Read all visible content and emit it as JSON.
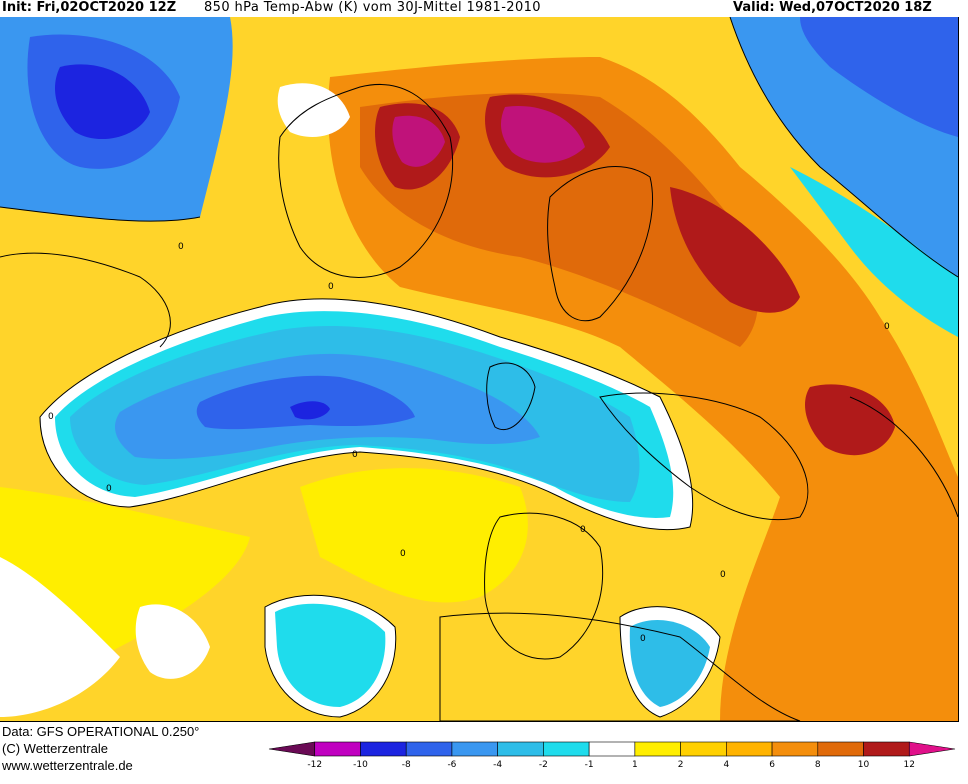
{
  "header": {
    "init": "Init: Fri,02OCT2020 12Z",
    "parameter": "850 hPa Temp-Abw (K) vom 30J-Mittel 1981-2010",
    "valid": "Valid: Wed,07OCT2020 18Z"
  },
  "footer": {
    "data_source": "Data: GFS OPERATIONAL 0.250°",
    "copyright": "(C) Wetterzentrale",
    "website": "www.wetterzentrale.de"
  },
  "map": {
    "contour_labels": [
      "0",
      "0",
      "0",
      "0",
      "0",
      "0",
      "0",
      "0",
      "0",
      "0"
    ]
  },
  "legend": {
    "colors": [
      "#6a0a55",
      "#c000c0",
      "#1c24e0",
      "#2f63eb",
      "#3a97f0",
      "#2ebde8",
      "#1fdcec",
      "#ffffff",
      "#ffee00",
      "#ffd000",
      "#ffb300",
      "#f48e0c",
      "#e06a0a",
      "#b01a1a",
      "#e0108a"
    ],
    "labels": [
      "-12",
      "-10",
      "-8",
      "-6",
      "-4",
      "-2",
      "-1",
      "1",
      "2",
      "4",
      "6",
      "8",
      "10",
      "12"
    ]
  }
}
